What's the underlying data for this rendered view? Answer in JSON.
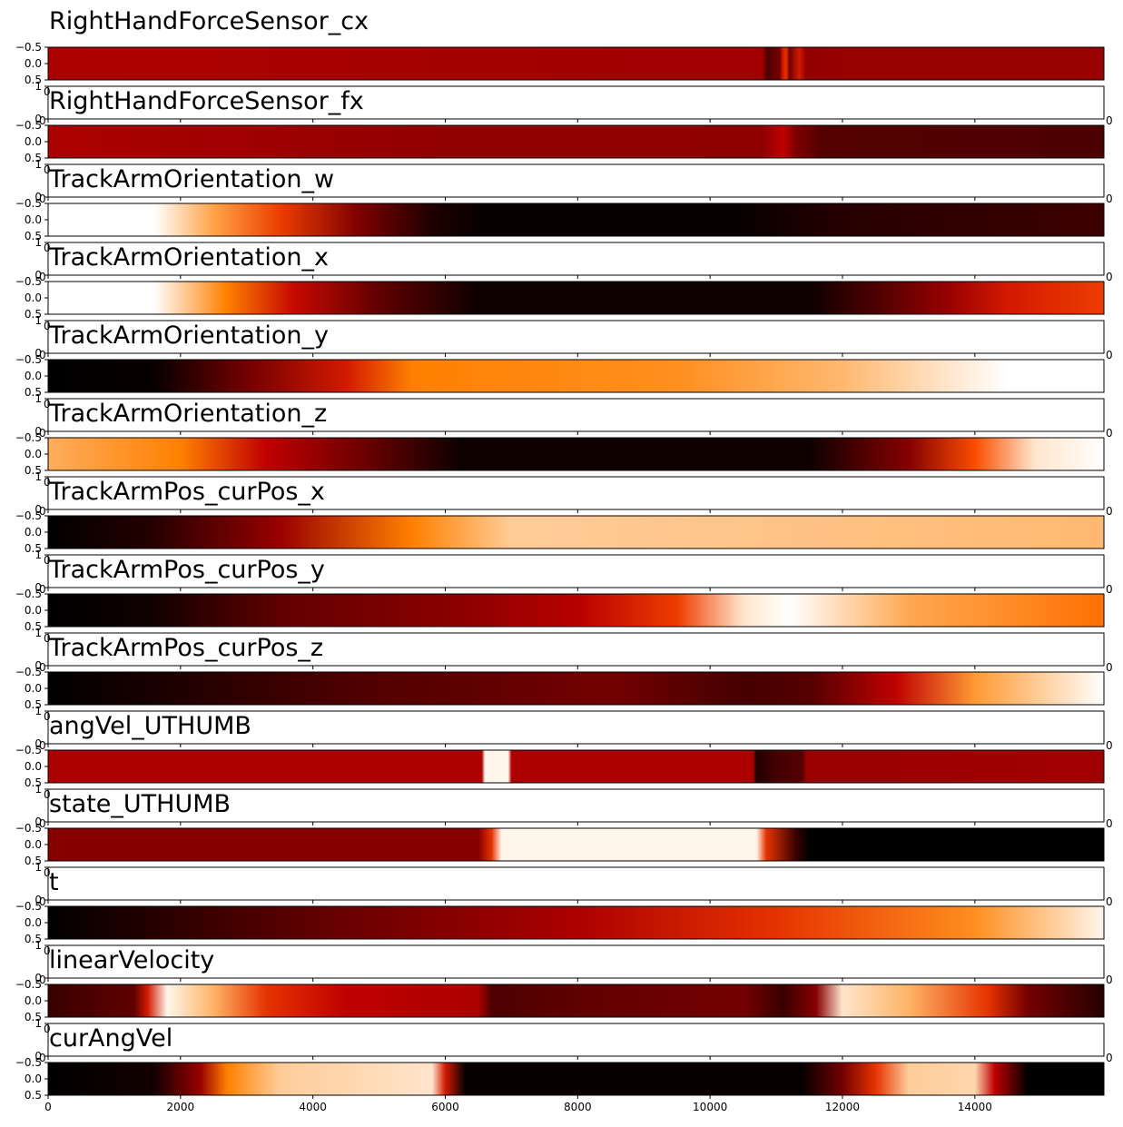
{
  "chart_data": {
    "type": "heatmap",
    "colormap": "gist_heat",
    "xlim": [
      0,
      15950
    ],
    "bottom_xticks": [
      "0",
      "2000",
      "4000",
      "6000",
      "8000",
      "10000",
      "12000",
      "14000"
    ],
    "bottom_xtick_values": [
      0,
      2000,
      4000,
      6000,
      8000,
      10000,
      12000,
      14000
    ],
    "strip_yticks": [
      "−0.5",
      "0.0",
      "0.5"
    ],
    "blank_yticks": [
      "1",
      "0"
    ],
    "panels": [
      {
        "title": "RightHandForceSensor_cx",
        "stops": [
          [
            0,
            0.45
          ],
          [
            4000,
            0.44
          ],
          [
            6500,
            0.43
          ],
          [
            10800,
            0.42
          ],
          [
            10850,
            0.2
          ],
          [
            11050,
            0.3
          ],
          [
            11100,
            0.55
          ],
          [
            11150,
            0.6
          ],
          [
            11200,
            0.3
          ],
          [
            11350,
            0.55
          ],
          [
            11450,
            0.38
          ],
          [
            12000,
            0.4
          ],
          [
            15950,
            0.4
          ]
        ],
        "trailing_tick": ""
      },
      {
        "title": "RightHandForceSensor_fx",
        "stops": [
          [
            0,
            0.45
          ],
          [
            2000,
            0.43
          ],
          [
            6000,
            0.38
          ],
          [
            10800,
            0.37
          ],
          [
            11100,
            0.5
          ],
          [
            11300,
            0.33
          ],
          [
            11700,
            0.22
          ],
          [
            15950,
            0.2
          ]
        ],
        "trailing_tick": "0"
      },
      {
        "title": "TrackArmOrientation_w",
        "stops": [
          [
            0,
            1.0
          ],
          [
            1600,
            1.0
          ],
          [
            2500,
            0.82
          ],
          [
            3500,
            0.62
          ],
          [
            4700,
            0.33
          ],
          [
            5800,
            0.08
          ],
          [
            6500,
            0.02
          ],
          [
            10500,
            0.02
          ],
          [
            12000,
            0.1
          ],
          [
            15950,
            0.16
          ]
        ],
        "trailing_tick": "0"
      },
      {
        "title": "TrackArmOrientation_x",
        "stops": [
          [
            0,
            1.0
          ],
          [
            1600,
            1.0
          ],
          [
            2700,
            0.75
          ],
          [
            3700,
            0.52
          ],
          [
            5000,
            0.25
          ],
          [
            6500,
            0.04
          ],
          [
            11500,
            0.04
          ],
          [
            12500,
            0.2
          ],
          [
            13600,
            0.4
          ],
          [
            14500,
            0.55
          ],
          [
            15950,
            0.62
          ]
        ],
        "trailing_tick": "0"
      },
      {
        "title": "TrackArmOrientation_y",
        "stops": [
          [
            0,
            0.0
          ],
          [
            1600,
            0.02
          ],
          [
            3000,
            0.3
          ],
          [
            4500,
            0.55
          ],
          [
            5500,
            0.75
          ],
          [
            9500,
            0.78
          ],
          [
            12000,
            0.86
          ],
          [
            14500,
            1.0
          ],
          [
            15950,
            1.0
          ]
        ],
        "trailing_tick": "0"
      },
      {
        "title": "TrackArmOrientation_z",
        "stops": [
          [
            0,
            0.84
          ],
          [
            2000,
            0.75
          ],
          [
            3300,
            0.5
          ],
          [
            4800,
            0.28
          ],
          [
            6200,
            0.04
          ],
          [
            11500,
            0.04
          ],
          [
            13000,
            0.35
          ],
          [
            14000,
            0.65
          ],
          [
            14900,
            0.95
          ],
          [
            15950,
            1.0
          ]
        ],
        "trailing_tick": "0"
      },
      {
        "title": "TrackArmPos_curPos_x",
        "stops": [
          [
            0,
            0.0
          ],
          [
            1600,
            0.1
          ],
          [
            3500,
            0.4
          ],
          [
            5500,
            0.75
          ],
          [
            7000,
            0.9
          ],
          [
            15950,
            0.86
          ]
        ],
        "trailing_tick": "0"
      },
      {
        "title": "TrackArmPos_curPos_y",
        "stops": [
          [
            0,
            0.0
          ],
          [
            1500,
            0.04
          ],
          [
            3500,
            0.25
          ],
          [
            6500,
            0.38
          ],
          [
            8000,
            0.48
          ],
          [
            9500,
            0.62
          ],
          [
            10500,
            0.95
          ],
          [
            11200,
            1.0
          ],
          [
            13000,
            0.83
          ],
          [
            15950,
            0.72
          ]
        ],
        "trailing_tick": "0"
      },
      {
        "title": "TrackArmPos_curPos_z",
        "stops": [
          [
            0,
            0.0
          ],
          [
            1500,
            0.06
          ],
          [
            4500,
            0.2
          ],
          [
            8500,
            0.3
          ],
          [
            10500,
            0.18
          ],
          [
            11500,
            0.22
          ],
          [
            12800,
            0.5
          ],
          [
            14000,
            0.8
          ],
          [
            15950,
            1.0
          ]
        ],
        "trailing_tick": "0"
      },
      {
        "title": "angVel_UTHUMB",
        "stops": [
          [
            0,
            0.45
          ],
          [
            6550,
            0.45
          ],
          [
            6600,
            0.98
          ],
          [
            6950,
            0.98
          ],
          [
            7000,
            0.45
          ],
          [
            10650,
            0.45
          ],
          [
            10700,
            0.08
          ],
          [
            11000,
            0.18
          ],
          [
            11400,
            0.22
          ],
          [
            11450,
            0.4
          ],
          [
            15950,
            0.42
          ]
        ],
        "trailing_tick": "0"
      },
      {
        "title": "state_UTHUMB",
        "stops": [
          [
            0,
            0.35
          ],
          [
            6500,
            0.35
          ],
          [
            6700,
            0.6
          ],
          [
            6850,
            0.98
          ],
          [
            10700,
            0.98
          ],
          [
            10850,
            0.6
          ],
          [
            11300,
            0.15
          ],
          [
            11500,
            0.0
          ],
          [
            15950,
            0.0
          ]
        ],
        "trailing_tick": "0"
      },
      {
        "title": "t",
        "stops": [
          [
            0,
            0.0
          ],
          [
            4000,
            0.25
          ],
          [
            8000,
            0.45
          ],
          [
            11000,
            0.6
          ],
          [
            14000,
            0.78
          ],
          [
            15950,
            0.98
          ]
        ],
        "trailing_tick": "0"
      },
      {
        "title": "linearVelocity",
        "stops": [
          [
            0,
            0.15
          ],
          [
            1300,
            0.25
          ],
          [
            1500,
            0.55
          ],
          [
            1800,
            0.98
          ],
          [
            2500,
            0.85
          ],
          [
            3300,
            0.6
          ],
          [
            4500,
            0.5
          ],
          [
            6500,
            0.45
          ],
          [
            6700,
            0.2
          ],
          [
            8000,
            0.25
          ],
          [
            10500,
            0.3
          ],
          [
            11100,
            0.15
          ],
          [
            11600,
            0.35
          ],
          [
            12000,
            0.95
          ],
          [
            13000,
            0.85
          ],
          [
            14200,
            0.6
          ],
          [
            14800,
            0.3
          ],
          [
            15950,
            0.1
          ]
        ],
        "trailing_tick": "0"
      },
      {
        "title": "curAngVel",
        "stops": [
          [
            0,
            0.0
          ],
          [
            1600,
            0.05
          ],
          [
            2300,
            0.4
          ],
          [
            2700,
            0.75
          ],
          [
            3500,
            0.9
          ],
          [
            5800,
            0.95
          ],
          [
            6000,
            0.55
          ],
          [
            6300,
            0.02
          ],
          [
            11400,
            0.02
          ],
          [
            12000,
            0.3
          ],
          [
            12500,
            0.6
          ],
          [
            13000,
            0.9
          ],
          [
            14000,
            0.92
          ],
          [
            14300,
            0.5
          ],
          [
            14800,
            0.0
          ],
          [
            15950,
            0.0
          ]
        ],
        "trailing_tick": "0"
      }
    ]
  }
}
